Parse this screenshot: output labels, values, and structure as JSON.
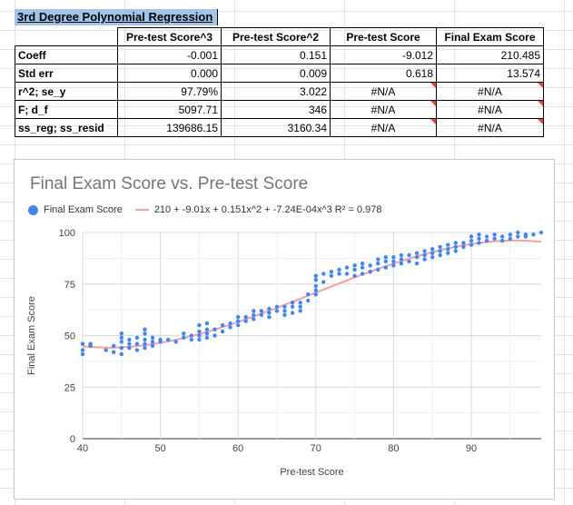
{
  "sheet": {
    "title": "3rd Degree Polynomial Regression",
    "columns": [
      "",
      "Pre-test Score^3",
      "Pre-test Score^2",
      "Pre-test Score",
      "Final Exam Score"
    ],
    "rows": [
      {
        "label": "Coeff",
        "values": [
          "-0.001",
          "0.151",
          "-9.012",
          "210.485"
        ],
        "flags": [
          false,
          false,
          false,
          false
        ]
      },
      {
        "label": "Std err",
        "values": [
          "0.000",
          "0.009",
          "0.618",
          "13.574"
        ],
        "flags": [
          false,
          false,
          false,
          false
        ]
      },
      {
        "label": "r^2; se_y",
        "values": [
          "97.79%",
          "3.022",
          "#N/A",
          "#N/A"
        ],
        "flags": [
          false,
          false,
          true,
          true
        ]
      },
      {
        "label": "F; d_f",
        "values": [
          "5097.71",
          "346",
          "#N/A",
          "#N/A"
        ],
        "flags": [
          false,
          false,
          true,
          true
        ]
      },
      {
        "label": "ss_reg; ss_resid",
        "values": [
          "139686.15",
          "3160.34",
          "#N/A",
          "#N/A"
        ],
        "flags": [
          false,
          false,
          true,
          true
        ]
      }
    ],
    "error_flag_color": "#ea4335"
  },
  "chart": {
    "title": "Final Exam Score vs. Pre-test Score",
    "legend_series": "Final Exam Score",
    "legend_trend": "210 + -9.01x + 0.151x^2 + -7.24E-04x^3 R² = 0.978",
    "point_color": "#4285f4",
    "trend_color": "#f4a0a0"
  },
  "chart_data": {
    "type": "scatter",
    "title": "Final Exam Score vs. Pre-test Score",
    "xlabel": "Pre-test Score",
    "ylabel": "Final Exam Score",
    "xlim": [
      40,
      99
    ],
    "ylim": [
      0,
      100
    ],
    "x_ticks": [
      40,
      50,
      60,
      70,
      80,
      90
    ],
    "y_ticks": [
      0,
      25,
      50,
      75,
      100
    ],
    "grid": true,
    "legend": "top-left",
    "series": [
      {
        "name": "Final Exam Score",
        "points": [
          [
            40,
            41
          ],
          [
            40,
            43
          ],
          [
            40,
            46
          ],
          [
            41,
            46
          ],
          [
            41,
            45
          ],
          [
            43,
            43
          ],
          [
            44,
            42
          ],
          [
            44,
            45
          ],
          [
            45,
            41
          ],
          [
            45,
            44
          ],
          [
            45,
            47
          ],
          [
            45,
            49
          ],
          [
            45,
            51
          ],
          [
            46,
            44
          ],
          [
            46,
            46
          ],
          [
            46,
            48
          ],
          [
            47,
            43
          ],
          [
            47,
            46
          ],
          [
            47,
            49
          ],
          [
            48,
            44
          ],
          [
            48,
            46
          ],
          [
            48,
            48
          ],
          [
            48,
            51
          ],
          [
            48,
            53
          ],
          [
            49,
            45
          ],
          [
            49,
            47
          ],
          [
            49,
            49
          ],
          [
            50,
            47
          ],
          [
            50,
            48
          ],
          [
            51,
            48
          ],
          [
            52,
            47
          ],
          [
            53,
            49
          ],
          [
            53,
            51
          ],
          [
            54,
            48
          ],
          [
            54,
            50
          ],
          [
            55,
            48
          ],
          [
            55,
            50
          ],
          [
            55,
            52
          ],
          [
            55,
            55
          ],
          [
            56,
            49
          ],
          [
            56,
            51
          ],
          [
            56,
            53
          ],
          [
            56,
            56
          ],
          [
            57,
            50
          ],
          [
            57,
            53
          ],
          [
            58,
            52
          ],
          [
            58,
            55
          ],
          [
            59,
            54
          ],
          [
            59,
            56
          ],
          [
            60,
            55
          ],
          [
            60,
            57
          ],
          [
            60,
            59
          ],
          [
            61,
            57
          ],
          [
            61,
            59
          ],
          [
            62,
            58
          ],
          [
            62,
            60
          ],
          [
            62,
            62
          ],
          [
            63,
            60
          ],
          [
            63,
            62
          ],
          [
            64,
            59
          ],
          [
            64,
            61
          ],
          [
            64,
            63
          ],
          [
            65,
            62
          ],
          [
            65,
            64
          ],
          [
            66,
            60
          ],
          [
            66,
            62
          ],
          [
            66,
            64
          ],
          [
            67,
            61
          ],
          [
            67,
            64
          ],
          [
            67,
            66
          ],
          [
            68,
            62
          ],
          [
            68,
            64
          ],
          [
            68,
            66
          ],
          [
            69,
            67
          ],
          [
            69,
            70
          ],
          [
            70,
            70
          ],
          [
            70,
            72
          ],
          [
            70,
            74
          ],
          [
            70,
            77
          ],
          [
            70,
            79
          ],
          [
            71,
            76
          ],
          [
            71,
            80
          ],
          [
            72,
            79
          ],
          [
            72,
            81
          ],
          [
            73,
            80
          ],
          [
            73,
            82
          ],
          [
            74,
            80
          ],
          [
            74,
            83
          ],
          [
            75,
            79
          ],
          [
            75,
            82
          ],
          [
            75,
            84
          ],
          [
            76,
            80
          ],
          [
            76,
            83
          ],
          [
            76,
            85
          ],
          [
            77,
            81
          ],
          [
            77,
            84
          ],
          [
            78,
            82
          ],
          [
            78,
            85
          ],
          [
            78,
            87
          ],
          [
            79,
            83
          ],
          [
            79,
            86
          ],
          [
            79,
            88
          ],
          [
            80,
            84
          ],
          [
            80,
            86
          ],
          [
            80,
            88
          ],
          [
            81,
            85
          ],
          [
            81,
            87
          ],
          [
            81,
            89
          ],
          [
            82,
            86
          ],
          [
            82,
            89
          ],
          [
            83,
            85
          ],
          [
            83,
            88
          ],
          [
            83,
            90
          ],
          [
            84,
            87
          ],
          [
            84,
            89
          ],
          [
            84,
            91
          ],
          [
            85,
            88
          ],
          [
            85,
            90
          ],
          [
            85,
            92
          ],
          [
            86,
            89
          ],
          [
            86,
            91
          ],
          [
            86,
            93
          ],
          [
            87,
            90
          ],
          [
            87,
            92
          ],
          [
            87,
            94
          ],
          [
            88,
            91
          ],
          [
            88,
            93
          ],
          [
            88,
            95
          ],
          [
            89,
            93
          ],
          [
            89,
            95
          ],
          [
            90,
            94
          ],
          [
            90,
            96
          ],
          [
            90,
            98
          ],
          [
            91,
            95
          ],
          [
            91,
            97
          ],
          [
            91,
            99
          ],
          [
            92,
            96
          ],
          [
            92,
            98
          ],
          [
            93,
            97
          ],
          [
            93,
            99
          ],
          [
            94,
            96
          ],
          [
            94,
            98
          ],
          [
            95,
            97
          ],
          [
            95,
            99
          ],
          [
            96,
            98
          ],
          [
            96,
            100
          ],
          [
            97,
            98
          ],
          [
            97,
            99
          ],
          [
            98,
            99
          ],
          [
            99,
            100
          ]
        ]
      },
      {
        "name": "210 + -9.01x + 0.151x^2 + -7.24E-04x^3 R² = 0.978",
        "type": "line",
        "coefficients": {
          "c0": 210,
          "c1": -9.01,
          "c2": 0.151,
          "c3": -0.000724
        }
      }
    ]
  }
}
